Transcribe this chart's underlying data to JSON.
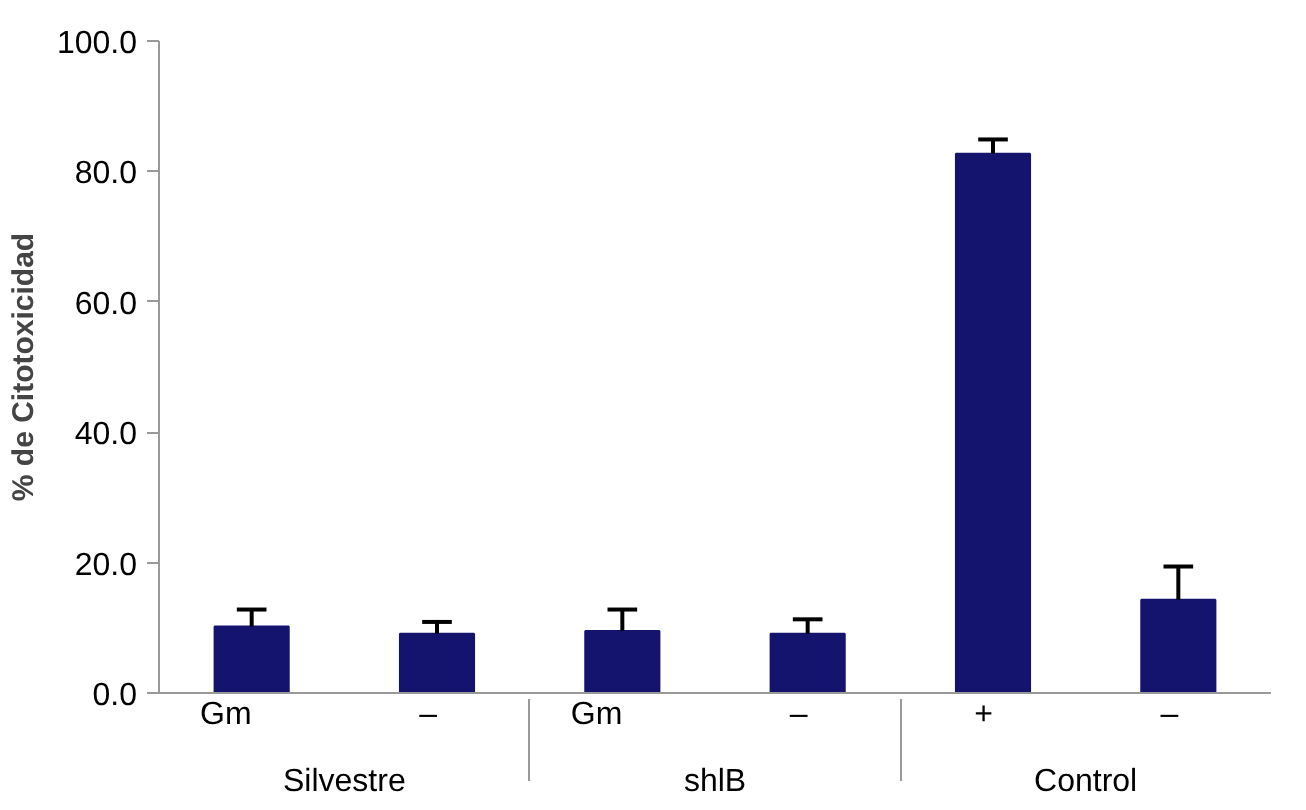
{
  "chart_data": {
    "type": "bar",
    "ylabel": "% de Citotoxicidad",
    "categories": [
      [
        "Silvestre",
        "Gm"
      ],
      [
        null,
        "–"
      ],
      [
        "shlB",
        "Gm"
      ],
      [
        null,
        "–"
      ],
      [
        "Control",
        "+"
      ],
      [
        null,
        "–"
      ]
    ],
    "values": [
      10.2,
      9.1,
      9.5,
      9.1,
      82.7,
      14.3
    ],
    "errors": [
      2.6,
      1.8,
      3.3,
      2.2,
      2.2,
      5.1
    ],
    "color": "#14146e",
    "ylim": [
      0,
      100
    ],
    "yticks": [
      {
        "value": 0,
        "label": "0.0"
      },
      {
        "value": 20,
        "label": "20.0"
      },
      {
        "value": 40,
        "label": "40.0"
      },
      {
        "value": 60,
        "label": "60.0"
      },
      {
        "value": 80,
        "label": "80.0"
      },
      {
        "value": 100,
        "label": "100.0"
      }
    ],
    "grid": false
  }
}
